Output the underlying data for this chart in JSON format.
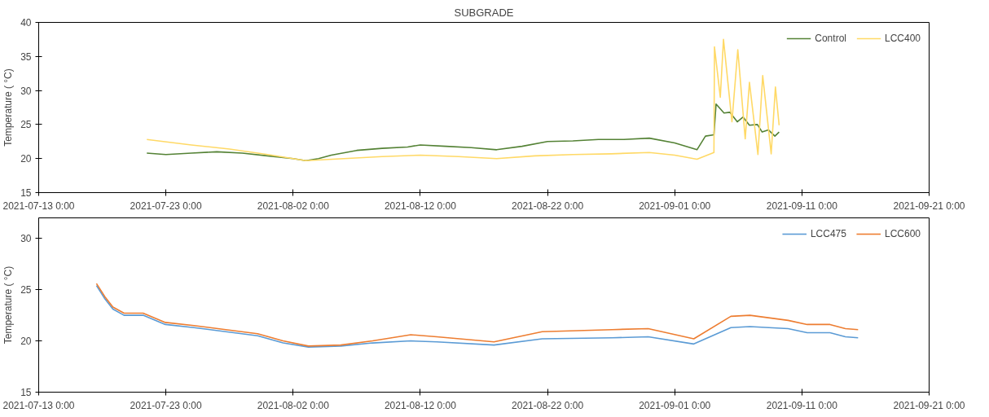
{
  "chart_data": [
    {
      "type": "line",
      "title": "SUBGRADE",
      "ylabel": "Temperature ( °C)",
      "xlim": [
        "2021-07-13T00:00",
        "2021-09-21T00:00"
      ],
      "ylim": [
        15,
        40
      ],
      "yticks": [
        15,
        20,
        25,
        30,
        35,
        40
      ],
      "xticks": [
        {
          "value": "2021-07-13T00:00",
          "label": "2021-07-13 0:00"
        },
        {
          "value": "2021-07-23T00:00",
          "label": "2021-07-23 0:00"
        },
        {
          "value": "2021-08-02T00:00",
          "label": "2021-08-02 0:00"
        },
        {
          "value": "2021-08-12T00:00",
          "label": "2021-08-12 0:00"
        },
        {
          "value": "2021-08-22T00:00",
          "label": "2021-08-22 0:00"
        },
        {
          "value": "2021-09-01T00:00",
          "label": "2021-09-01 0:00"
        },
        {
          "value": "2021-09-11T00:00",
          "label": "2021-09-11 0:00"
        },
        {
          "value": "2021-09-21T00:00",
          "label": "2021-09-21 0:00"
        }
      ],
      "grid": false,
      "legend": "top right",
      "line_style": "solid",
      "marker": "none",
      "series": [
        {
          "name": "Control",
          "color": "#548235",
          "x": [
            "2021-07-21T12:00",
            "2021-07-23T00:00",
            "2021-07-25T00:00",
            "2021-07-27T00:00",
            "2021-07-29T00:00",
            "2021-07-31T00:00",
            "2021-08-02T00:00",
            "2021-08-03T00:00",
            "2021-08-04T00:00",
            "2021-08-05T00:00",
            "2021-08-07T00:00",
            "2021-08-09T00:00",
            "2021-08-11T00:00",
            "2021-08-12T00:00",
            "2021-08-14T00:00",
            "2021-08-16T00:00",
            "2021-08-18T00:00",
            "2021-08-20T00:00",
            "2021-08-22T00:00",
            "2021-08-24T00:00",
            "2021-08-26T00:00",
            "2021-08-28T00:00",
            "2021-08-30T00:00",
            "2021-09-01T00:00",
            "2021-09-02T18:00",
            "2021-09-03T10:00",
            "2021-09-04T02:00",
            "2021-09-04T06:00",
            "2021-09-04T21:00",
            "2021-09-05T08:00",
            "2021-09-05T22:00",
            "2021-09-06T09:00",
            "2021-09-06T21:00",
            "2021-09-07T12:00",
            "2021-09-07T21:00",
            "2021-09-08T09:00",
            "2021-09-08T21:00",
            "2021-09-09T05:00"
          ],
          "values": [
            20.8,
            20.6,
            20.8,
            21.0,
            20.8,
            20.4,
            20.0,
            19.7,
            20.0,
            20.5,
            21.2,
            21.5,
            21.7,
            22.0,
            21.8,
            21.6,
            21.3,
            21.8,
            22.5,
            22.6,
            22.8,
            22.8,
            23.0,
            22.3,
            21.3,
            23.3,
            23.5,
            28.0,
            26.7,
            26.8,
            25.4,
            26.1,
            24.9,
            25.0,
            23.9,
            24.2,
            23.3,
            23.9
          ]
        },
        {
          "name": "LCC400",
          "color": "#ffd966",
          "x": [
            "2021-07-21T12:00",
            "2021-07-25T00:00",
            "2021-07-28T00:00",
            "2021-07-31T00:00",
            "2021-08-03T00:00",
            "2021-08-06T00:00",
            "2021-08-09T00:00",
            "2021-08-12T00:00",
            "2021-08-15T00:00",
            "2021-08-18T00:00",
            "2021-08-21T00:00",
            "2021-08-24T00:00",
            "2021-08-27T00:00",
            "2021-08-30T00:00",
            "2021-09-01T00:00",
            "2021-09-02T18:00",
            "2021-09-04T02:00",
            "2021-09-04T03:00",
            "2021-09-04T14:00",
            "2021-09-04T20:00",
            "2021-09-05T12:00",
            "2021-09-05T23:00",
            "2021-09-06T13:00",
            "2021-09-06T21:00",
            "2021-09-07T13:00",
            "2021-09-07T22:00",
            "2021-09-08T14:00",
            "2021-09-08T22:00",
            "2021-09-09T05:00"
          ],
          "values": [
            22.8,
            22.0,
            21.4,
            20.6,
            19.7,
            20.0,
            20.3,
            20.5,
            20.3,
            20.0,
            20.4,
            20.6,
            20.7,
            20.9,
            20.5,
            19.9,
            20.9,
            36.4,
            29.0,
            37.5,
            25.4,
            36.0,
            22.9,
            31.2,
            20.6,
            32.2,
            20.7,
            30.5,
            24.9
          ]
        }
      ]
    },
    {
      "type": "line",
      "ylabel": "Temperature ( °C)",
      "xlim": [
        "2021-07-13T00:00",
        "2021-09-21T00:00"
      ],
      "ylim": [
        15,
        32
      ],
      "yticks": [
        15,
        20,
        25,
        30
      ],
      "xticks": [
        {
          "value": "2021-07-13T00:00",
          "label": "2021-07-13 0:00"
        },
        {
          "value": "2021-07-23T00:00",
          "label": "2021-07-23 0:00"
        },
        {
          "value": "2021-08-02T00:00",
          "label": "2021-08-02 0:00"
        },
        {
          "value": "2021-08-12T00:00",
          "label": "2021-08-12 0:00"
        },
        {
          "value": "2021-08-22T00:00",
          "label": "2021-08-22 0:00"
        },
        {
          "value": "2021-09-01T00:00",
          "label": "2021-09-01 0:00"
        },
        {
          "value": "2021-09-11T00:00",
          "label": "2021-09-11 0:00"
        },
        {
          "value": "2021-09-21T00:00",
          "label": "2021-09-21 0:00"
        }
      ],
      "grid": false,
      "legend": "top right",
      "line_style": "solid",
      "marker": "none",
      "x": [
        "2021-07-17T13:00",
        "2021-07-18T05:00",
        "2021-07-18T20:00",
        "2021-07-19T17:00",
        "2021-07-21T05:00",
        "2021-07-22T23:00",
        "2021-07-25T05:00",
        "2021-07-27T17:00",
        "2021-07-30T05:00",
        "2021-08-01T05:00",
        "2021-08-03T05:00",
        "2021-08-05T18:00",
        "2021-08-08T06:00",
        "2021-08-11T06:00",
        "2021-08-13T07:00",
        "2021-08-17T19:00",
        "2021-08-21T14:00",
        "2021-08-27T02:00",
        "2021-08-29T22:00",
        "2021-09-02T12:00",
        "2021-09-05T10:00",
        "2021-09-06T22:00",
        "2021-09-09T22:00",
        "2021-09-11T10:00",
        "2021-09-13T05:00",
        "2021-09-14T10:00",
        "2021-09-15T10:00"
      ],
      "series": [
        {
          "name": "LCC475",
          "color": "#5b9bd5",
          "values": [
            25.4,
            24.1,
            23.1,
            22.5,
            22.5,
            21.6,
            21.3,
            20.9,
            20.5,
            19.8,
            19.4,
            19.5,
            19.8,
            20.0,
            19.9,
            19.6,
            20.2,
            20.3,
            20.4,
            19.7,
            21.3,
            21.4,
            21.2,
            20.8,
            20.8,
            20.4,
            20.3
          ]
        },
        {
          "name": "LCC600",
          "color": "#ed7d31",
          "values": [
            25.6,
            24.3,
            23.3,
            22.7,
            22.7,
            21.8,
            21.5,
            21.1,
            20.7,
            20.0,
            19.5,
            19.6,
            20.0,
            20.6,
            20.4,
            19.9,
            20.9,
            21.1,
            21.2,
            20.2,
            22.4,
            22.5,
            22.0,
            21.6,
            21.6,
            21.2,
            21.1
          ]
        }
      ]
    }
  ]
}
